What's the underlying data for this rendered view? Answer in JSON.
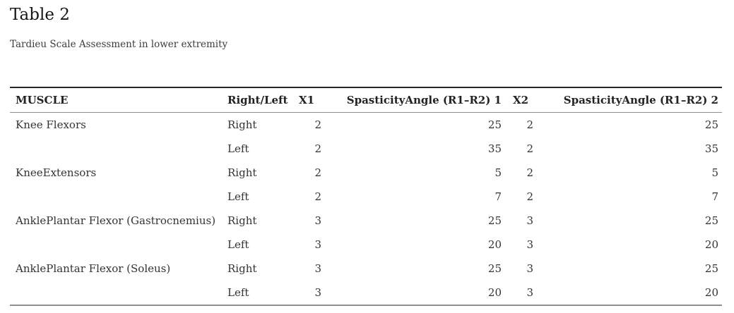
{
  "page": {
    "title": "Table 2",
    "subtitle": "Tardieu Scale Assessment in lower extremity"
  },
  "colors": {
    "background": "#ffffff",
    "heading_text": "#161616",
    "body_text": "#333333",
    "table_border_top": "#262626",
    "table_border_gray": "#8f8f8f"
  },
  "table": {
    "columns": [
      {
        "key": "muscle",
        "label": "MUSCLE",
        "header_align": "left",
        "align": "left"
      },
      {
        "key": "right-left",
        "label": "Right/Left",
        "header_align": "left",
        "align": "left"
      },
      {
        "key": "x1",
        "label": "X1",
        "header_align": "left",
        "align": "right"
      },
      {
        "key": "spasticity-angle-1",
        "label": "SpasticityAngle (R1–R2) 1",
        "header_align": "right",
        "align": "right"
      },
      {
        "key": "x2",
        "label": "X2",
        "header_align": "left",
        "align": "right"
      },
      {
        "key": "spasticity-angle-2",
        "label": "SpasticityAngle (R1–R2) 2",
        "header_align": "right",
        "align": "right"
      }
    ],
    "rows": [
      [
        "Knee Flexors",
        "Right",
        "2",
        "25",
        "2",
        "25"
      ],
      [
        "",
        "Left",
        "2",
        "35",
        "2",
        "35"
      ],
      [
        "KneeExtensors",
        "Right",
        "2",
        "5",
        "2",
        "5"
      ],
      [
        "",
        "Left",
        "2",
        "7",
        "2",
        "7"
      ],
      [
        "AnklePlantar Flexor (Gastrocnemius)",
        "Right",
        "3",
        "25",
        "3",
        "25"
      ],
      [
        "",
        "Left",
        "3",
        "20",
        "3",
        "20"
      ],
      [
        "AnklePlantar Flexor (Soleus)",
        "Right",
        "3",
        "25",
        "3",
        "25"
      ],
      [
        "",
        "Left",
        "3",
        "20",
        "3",
        "20"
      ]
    ]
  }
}
